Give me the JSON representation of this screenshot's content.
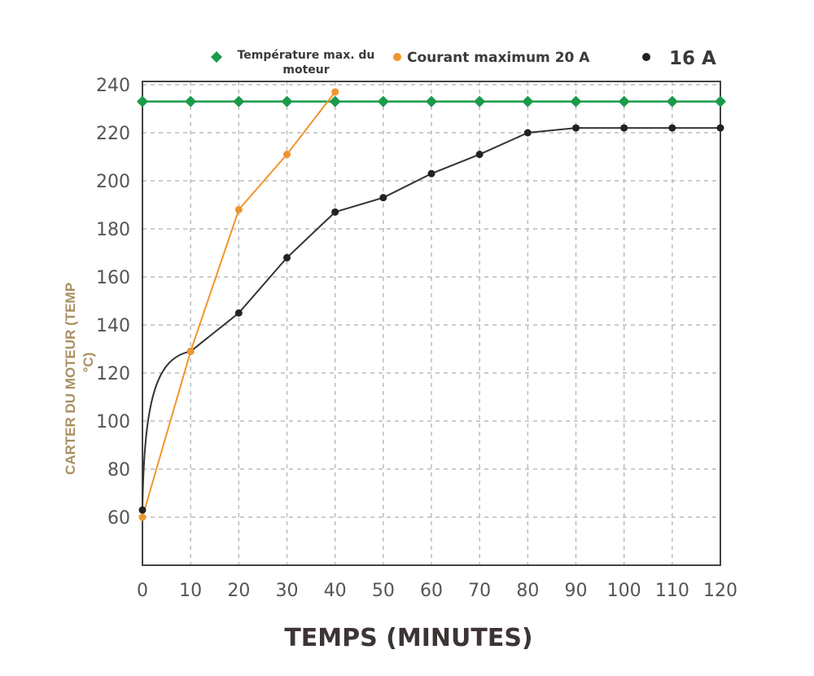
{
  "colors": {
    "max_temp": "#1a9a4a",
    "current_20a": "#f0952e",
    "current_16a": "#222222",
    "grid": "#bbbbbb",
    "axis": "#444444",
    "ylabel": "#a89060"
  },
  "chart_data": {
    "type": "line",
    "xlabel": "TEMPS (MINUTES)",
    "ylabel_lines": [
      "CARTER DU MOTEUR (TEMP",
      "°C)"
    ],
    "xlim": [
      0,
      120
    ],
    "ylim": [
      50,
      240
    ],
    "x_ticks": [
      "0",
      "10",
      "20",
      "30",
      "40",
      "50",
      "60",
      "70",
      "80",
      "90",
      "100",
      "110",
      "120"
    ],
    "y_ticks": [
      "60",
      "80",
      "100",
      "120",
      "140",
      "160",
      "180",
      "200",
      "220",
      "240"
    ],
    "grid": true,
    "legend_position": "top",
    "series": [
      {
        "name_lines": [
          "Température max. du",
          "moteur"
        ],
        "marker": "diamond",
        "x": [
          0,
          10,
          20,
          30,
          40,
          50,
          60,
          70,
          80,
          90,
          100,
          110,
          120
        ],
        "y": [
          233,
          233,
          233,
          233,
          233,
          233,
          233,
          233,
          233,
          233,
          233,
          233,
          233
        ]
      },
      {
        "name": "Courant maximum 20 A",
        "marker": "circle",
        "x": [
          0,
          10,
          20,
          30,
          40
        ],
        "y": [
          60,
          129,
          188,
          211,
          237
        ]
      },
      {
        "name": "16 A",
        "marker": "circle",
        "x": [
          0,
          10,
          20,
          30,
          40,
          50,
          60,
          70,
          80,
          90,
          100,
          110,
          120
        ],
        "y": [
          63,
          129,
          145,
          168,
          187,
          193,
          203,
          211,
          220,
          222,
          222,
          222,
          222
        ]
      }
    ]
  }
}
